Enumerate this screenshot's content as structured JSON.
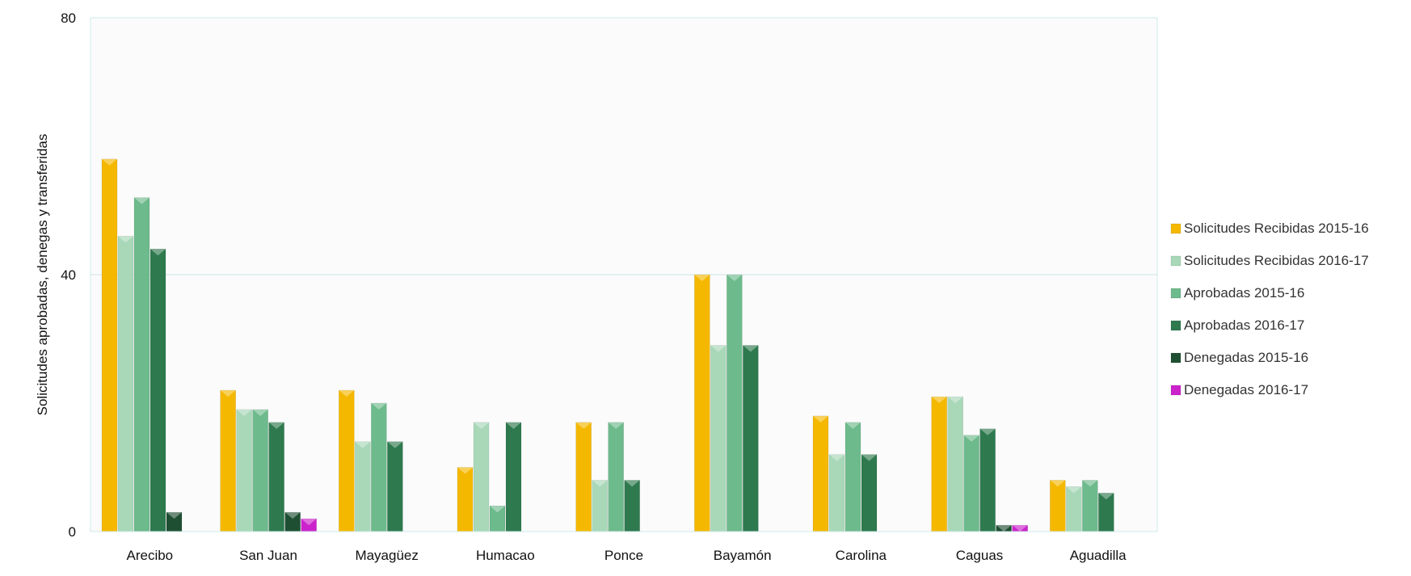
{
  "chart_data": {
    "type": "bar",
    "title": "",
    "xlabel": "",
    "ylabel": "Solicitudes aprobadas, denegas y transferidas",
    "ylim": [
      0,
      80
    ],
    "yticks": [
      0,
      40,
      80
    ],
    "grid": true,
    "legend_position": "right",
    "categories": [
      "Arecibo",
      "San Juan",
      "Mayagüez",
      "Humacao",
      "Ponce",
      "Bayamón",
      "Carolina",
      "Caguas",
      "Aguadilla"
    ],
    "series": [
      {
        "name": "Solicitudes Recibidas 2015-16",
        "color": "#f5b800",
        "values": [
          58,
          22,
          22,
          10,
          17,
          40,
          18,
          21,
          8
        ]
      },
      {
        "name": "Solicitudes Recibidas 2016-17",
        "color": "#a8d8b8",
        "values": [
          46,
          19,
          14,
          17,
          8,
          29,
          12,
          21,
          7
        ]
      },
      {
        "name": "Aprobadas 2015-16",
        "color": "#6dba8c",
        "values": [
          52,
          19,
          20,
          4,
          17,
          40,
          17,
          15,
          8
        ]
      },
      {
        "name": "Aprobadas 2016-17",
        "color": "#2e7a4e",
        "values": [
          44,
          17,
          14,
          17,
          8,
          29,
          12,
          16,
          6
        ]
      },
      {
        "name": "Denegadas 2015-16",
        "color": "#1f4f32",
        "values": [
          3,
          3,
          0,
          0,
          0,
          0,
          0,
          1,
          0
        ]
      },
      {
        "name": "Denegadas 2016-17",
        "color": "#cc22cc",
        "values": [
          0,
          2,
          0,
          0,
          0,
          0,
          0,
          1,
          0
        ]
      }
    ]
  }
}
